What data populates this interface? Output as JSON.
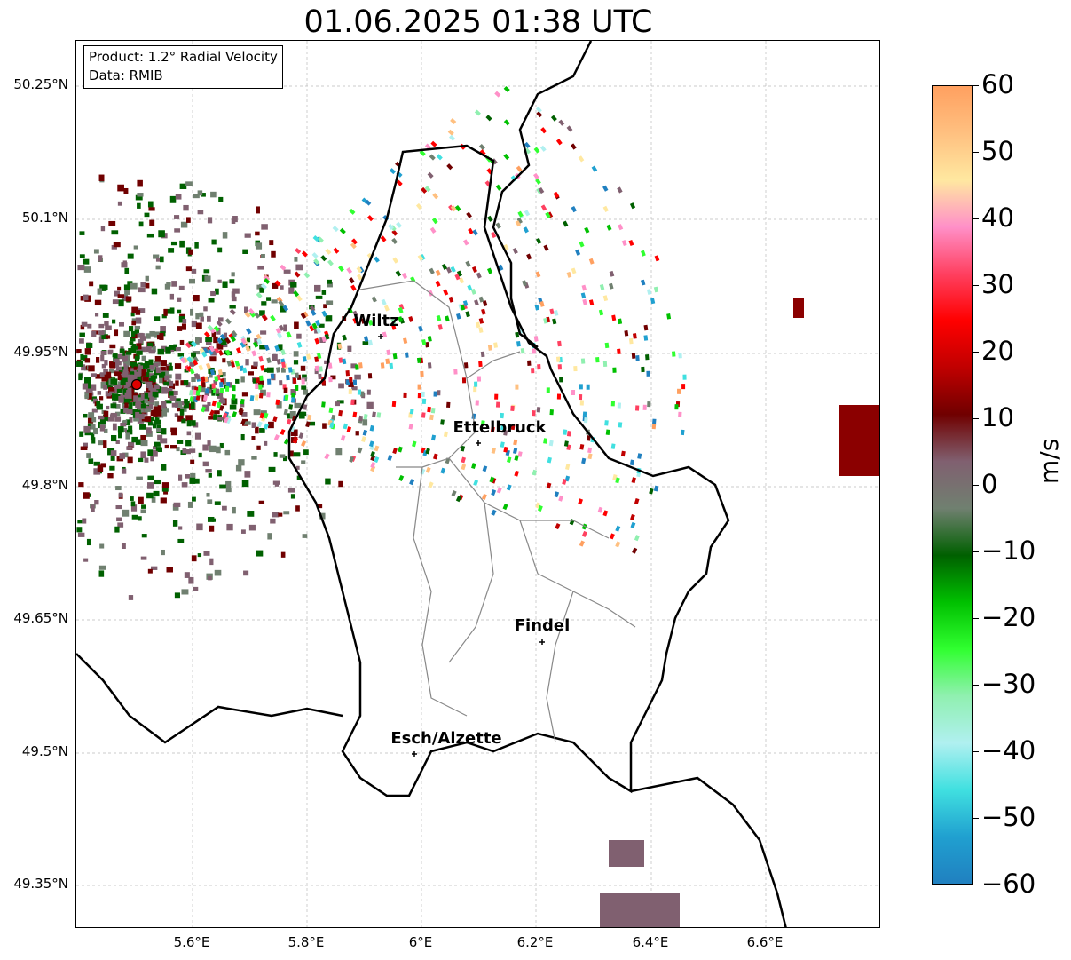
{
  "title": "01.06.2025 01:38 UTC",
  "info": {
    "product": "Product: 1.2° Radial Velocity",
    "data": "Data: RMIB"
  },
  "map": {
    "lat_ticks": [
      "50.25°N",
      "50.1°N",
      "49.95°N",
      "49.8°N",
      "49.65°N",
      "49.5°N",
      "49.35°N"
    ],
    "lon_ticks": [
      "5.6°E",
      "5.8°E",
      "6°E",
      "6.2°E",
      "6.4°E",
      "6.6°E"
    ],
    "cities": [
      {
        "name": "Wiltz"
      },
      {
        "name": "Ettelbruck"
      },
      {
        "name": "Findel"
      },
      {
        "name": "Esch/Alzette"
      }
    ],
    "radar_site_color": "#e00000"
  },
  "colorbar": {
    "unit": "m/s",
    "ticks": [
      "60",
      "50",
      "40",
      "30",
      "20",
      "10",
      "0",
      "−10",
      "−20",
      "−30",
      "−40",
      "−50",
      "−60"
    ],
    "stops": [
      "#ffa060",
      "#ffc080",
      "#ffe8a0",
      "#ff90c8",
      "#ff4060",
      "#ff0000",
      "#c00000",
      "#700000",
      "#806070",
      "#708070",
      "#006000",
      "#00c000",
      "#30ff30",
      "#90f0b0",
      "#b0f0f0",
      "#40e0e0",
      "#20a0d0",
      "#2080c0"
    ]
  }
}
